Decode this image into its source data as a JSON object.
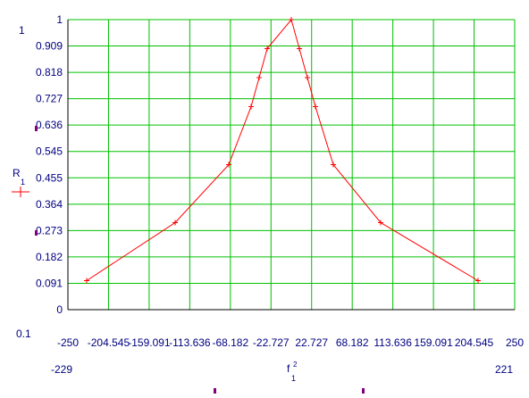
{
  "chart_data": {
    "type": "line",
    "x_axis": {
      "tick_labels": [
        "-250",
        "-204.545",
        "-159.091",
        "-113.636",
        "-68.182",
        "-22.727",
        "22.727",
        "68.182",
        "113.636",
        "159.091",
        "204.545",
        "250"
      ],
      "range": [
        -250,
        250
      ],
      "label": "f",
      "label_superscript": "2",
      "label_subscript": "1",
      "range_min_label": "-229",
      "range_max_label": "221"
    },
    "y_axis": {
      "tick_labels": [
        "0",
        "0.091",
        "0.182",
        "0.273",
        "0.364",
        "0.455",
        "0.545",
        "0.636",
        "0.727",
        "0.818",
        "0.909",
        "1"
      ],
      "range": [
        0,
        1
      ],
      "label": "R",
      "label_subscript": "1",
      "range_min_label": "0.1",
      "range_max_label": "1"
    },
    "grid": true,
    "series": [
      {
        "color": "#ff0000",
        "marker": "+",
        "x": [
          -229,
          -130,
          -70,
          -45,
          -36,
          -27,
          0,
          9,
          18,
          27,
          47,
          100,
          209
        ],
        "y": [
          0.1,
          0.3,
          0.5,
          0.7,
          0.8,
          0.9,
          1,
          0.9,
          0.8,
          0.7,
          0.5,
          0.3,
          0.1
        ]
      }
    ],
    "colors": {
      "grid": "#00c000",
      "axis": "#000000",
      "series": "#ff0000",
      "labels": "#000080",
      "markers": "#800080"
    }
  }
}
